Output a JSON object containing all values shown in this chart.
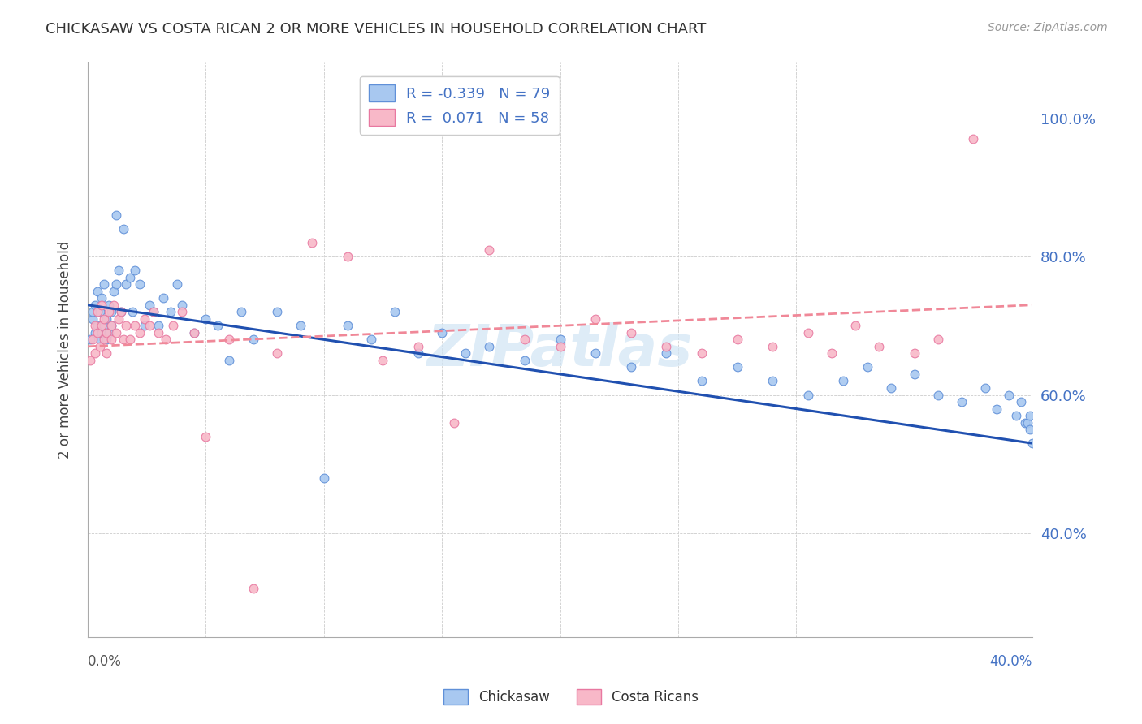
{
  "title": "CHICKASAW VS COSTA RICAN 2 OR MORE VEHICLES IN HOUSEHOLD CORRELATION CHART",
  "source": "Source: ZipAtlas.com",
  "ylabel": "2 or more Vehicles in Household",
  "ytick_vals": [
    0.4,
    0.6,
    0.8,
    1.0
  ],
  "ytick_labels": [
    "40.0%",
    "60.0%",
    "80.0%",
    "100.0%"
  ],
  "xmin": 0.0,
  "xmax": 0.4,
  "ymin": 0.25,
  "ymax": 1.08,
  "legend_r1": "R = -0.339",
  "legend_n1": "N = 79",
  "legend_r2": "R =  0.071",
  "legend_n2": "N = 58",
  "chickasaw_color": "#A8C8F0",
  "costa_rican_color": "#F8B8C8",
  "chickasaw_edge": "#6090D8",
  "costa_rican_edge": "#E878A0",
  "chickasaw_line_color": "#2050B0",
  "costa_rican_line_color": "#F08898",
  "watermark": "ZIPatlas",
  "watermark_color": "#D0E4F4",
  "chickasaw_x": [
    0.001,
    0.002,
    0.002,
    0.003,
    0.003,
    0.004,
    0.004,
    0.005,
    0.005,
    0.006,
    0.006,
    0.007,
    0.007,
    0.008,
    0.008,
    0.009,
    0.009,
    0.01,
    0.01,
    0.011,
    0.012,
    0.012,
    0.013,
    0.014,
    0.015,
    0.016,
    0.018,
    0.019,
    0.02,
    0.022,
    0.024,
    0.026,
    0.028,
    0.03,
    0.032,
    0.035,
    0.038,
    0.04,
    0.045,
    0.05,
    0.055,
    0.06,
    0.065,
    0.07,
    0.08,
    0.09,
    0.1,
    0.11,
    0.12,
    0.13,
    0.14,
    0.15,
    0.16,
    0.17,
    0.185,
    0.2,
    0.215,
    0.23,
    0.245,
    0.26,
    0.275,
    0.29,
    0.305,
    0.32,
    0.33,
    0.34,
    0.35,
    0.36,
    0.37,
    0.38,
    0.385,
    0.39,
    0.393,
    0.395,
    0.397,
    0.398,
    0.399,
    0.399,
    0.4
  ],
  "chickasaw_y": [
    0.68,
    0.71,
    0.72,
    0.69,
    0.73,
    0.7,
    0.75,
    0.68,
    0.72,
    0.69,
    0.74,
    0.7,
    0.76,
    0.71,
    0.68,
    0.73,
    0.69,
    0.72,
    0.7,
    0.75,
    0.86,
    0.76,
    0.78,
    0.72,
    0.84,
    0.76,
    0.77,
    0.72,
    0.78,
    0.76,
    0.7,
    0.73,
    0.72,
    0.7,
    0.74,
    0.72,
    0.76,
    0.73,
    0.69,
    0.71,
    0.7,
    0.65,
    0.72,
    0.68,
    0.72,
    0.7,
    0.48,
    0.7,
    0.68,
    0.72,
    0.66,
    0.69,
    0.66,
    0.67,
    0.65,
    0.68,
    0.66,
    0.64,
    0.66,
    0.62,
    0.64,
    0.62,
    0.6,
    0.62,
    0.64,
    0.61,
    0.63,
    0.6,
    0.59,
    0.61,
    0.58,
    0.6,
    0.57,
    0.59,
    0.56,
    0.56,
    0.57,
    0.55,
    0.53
  ],
  "costa_rican_x": [
    0.001,
    0.002,
    0.003,
    0.003,
    0.004,
    0.004,
    0.005,
    0.006,
    0.006,
    0.007,
    0.007,
    0.008,
    0.008,
    0.009,
    0.01,
    0.01,
    0.011,
    0.012,
    0.013,
    0.014,
    0.015,
    0.016,
    0.018,
    0.02,
    0.022,
    0.024,
    0.026,
    0.028,
    0.03,
    0.033,
    0.036,
    0.04,
    0.045,
    0.05,
    0.06,
    0.07,
    0.08,
    0.095,
    0.11,
    0.125,
    0.14,
    0.155,
    0.17,
    0.185,
    0.2,
    0.215,
    0.23,
    0.245,
    0.26,
    0.275,
    0.29,
    0.305,
    0.315,
    0.325,
    0.335,
    0.35,
    0.36,
    0.375
  ],
  "costa_rican_y": [
    0.65,
    0.68,
    0.7,
    0.66,
    0.69,
    0.72,
    0.67,
    0.7,
    0.73,
    0.68,
    0.71,
    0.66,
    0.69,
    0.72,
    0.68,
    0.7,
    0.73,
    0.69,
    0.71,
    0.72,
    0.68,
    0.7,
    0.68,
    0.7,
    0.69,
    0.71,
    0.7,
    0.72,
    0.69,
    0.68,
    0.7,
    0.72,
    0.69,
    0.54,
    0.68,
    0.32,
    0.66,
    0.82,
    0.8,
    0.65,
    0.67,
    0.56,
    0.81,
    0.68,
    0.67,
    0.71,
    0.69,
    0.67,
    0.66,
    0.68,
    0.67,
    0.69,
    0.66,
    0.7,
    0.67,
    0.66,
    0.68,
    0.97
  ],
  "chick_line_x": [
    0.0,
    0.4
  ],
  "chick_line_y": [
    0.73,
    0.53
  ],
  "cr_line_x": [
    0.0,
    0.4
  ],
  "cr_line_y": [
    0.67,
    0.73
  ]
}
